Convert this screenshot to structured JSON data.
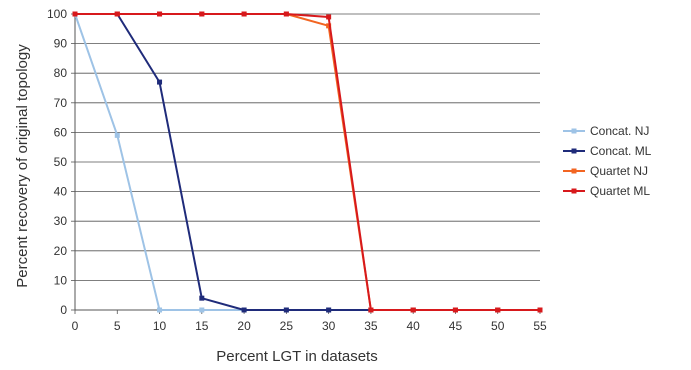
{
  "chart_data": {
    "type": "line",
    "xlabel": "Percent LGT in datasets",
    "ylabel": "Percent recovery of original topology",
    "xlim": [
      0,
      55
    ],
    "ylim": [
      0,
      100
    ],
    "x_ticks": [
      0,
      5,
      10,
      15,
      20,
      25,
      30,
      35,
      40,
      45,
      50,
      55
    ],
    "y_ticks": [
      0,
      10,
      20,
      30,
      40,
      50,
      60,
      70,
      80,
      90,
      100
    ],
    "grid": "horizontal",
    "legend": "right",
    "series": [
      {
        "name": "Concat. NJ",
        "color": "#9ec3e6",
        "x": [
          0,
          5,
          10,
          15,
          20,
          25,
          30,
          35,
          40,
          45,
          50,
          55
        ],
        "values": [
          100,
          59,
          0,
          0,
          0,
          0,
          0,
          0,
          0,
          0,
          0,
          0
        ]
      },
      {
        "name": "Concat. ML",
        "color": "#1f2b7a",
        "x": [
          0,
          5,
          10,
          15,
          20,
          25,
          30,
          35,
          40,
          45,
          50,
          55
        ],
        "values": [
          100,
          100,
          77,
          4,
          0,
          0,
          0,
          0,
          0,
          0,
          0,
          0
        ]
      },
      {
        "name": "Quartet NJ",
        "color": "#f26522",
        "x": [
          0,
          5,
          10,
          15,
          20,
          25,
          30,
          35,
          40,
          45,
          50,
          55
        ],
        "values": [
          100,
          100,
          100,
          100,
          100,
          100,
          96,
          0,
          0,
          0,
          0,
          0
        ]
      },
      {
        "name": "Quartet ML",
        "color": "#d7191c",
        "x": [
          0,
          5,
          10,
          15,
          20,
          25,
          30,
          35,
          40,
          45,
          50,
          55
        ],
        "values": [
          100,
          100,
          100,
          100,
          100,
          100,
          99,
          0,
          0,
          0,
          0,
          0
        ]
      }
    ]
  }
}
